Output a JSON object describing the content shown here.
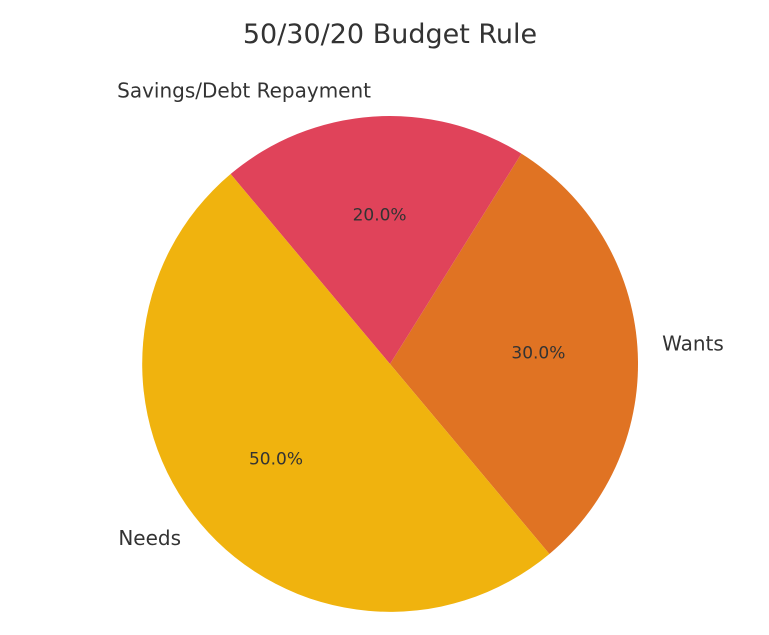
{
  "chart_data": {
    "type": "pie",
    "title": "50/30/20 Budget Rule",
    "categories": [
      "Wants",
      "Savings/Debt Repayment",
      "Needs"
    ],
    "values": [
      30,
      20,
      50
    ],
    "percent_labels": [
      "30.0%",
      "20.0%",
      "50.0%"
    ],
    "colors": [
      "#E07323",
      "#E0435A",
      "#F0B30E"
    ],
    "start_angle_deg": -50,
    "direction": "counterclockwise",
    "legend": "none"
  }
}
